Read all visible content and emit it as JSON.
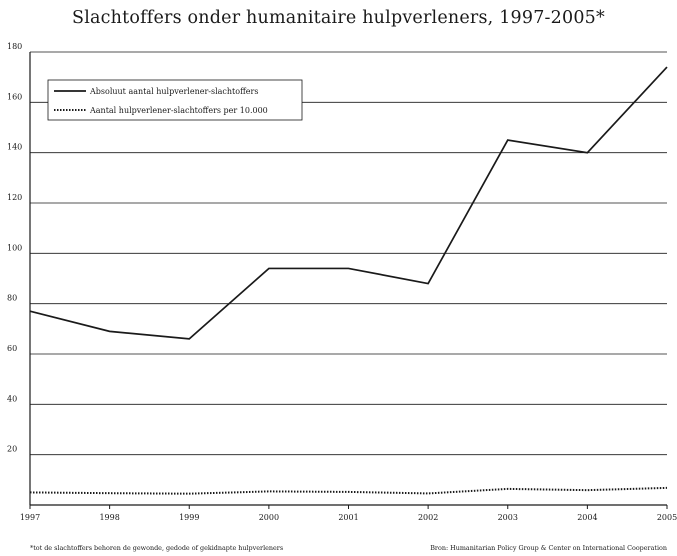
{
  "chart_data": {
    "type": "line",
    "title": "Slachtoffers onder humanitaire hulpverleners, 1997-2005*",
    "xlabel": "",
    "ylabel": "",
    "x": [
      "1997",
      "1998",
      "1999",
      "2000",
      "2001",
      "2002",
      "2003",
      "2004",
      "2005"
    ],
    "ylim": [
      0,
      180
    ],
    "yticks": [
      "20",
      "40",
      "60",
      "80",
      "100",
      "120",
      "140",
      "160",
      "180"
    ],
    "grid": "horizontal",
    "legend_position": "top-left",
    "series": [
      {
        "name": "Absoluut aantal hulpverlener-slachtoffers",
        "style": "solid",
        "values": [
          77,
          69,
          66,
          94,
          94,
          88,
          145,
          140,
          174
        ]
      },
      {
        "name": "Aantal hulpverlener-slachtoffers per 10.000",
        "style": "dotted",
        "values": [
          5,
          4.7,
          4.5,
          5.4,
          5.2,
          4.6,
          6.4,
          5.9,
          6.8
        ]
      }
    ],
    "footnote": "*tot de slachtoffers behoren de gewonde, gedode of gekidnapte hulpverleners",
    "source": "Bron: Humanitarian Policy Group & Center on International Cooperation"
  },
  "colors": {
    "line": "#1a1a1a",
    "grid": "#1a1a1a",
    "background": "#ffffff"
  }
}
